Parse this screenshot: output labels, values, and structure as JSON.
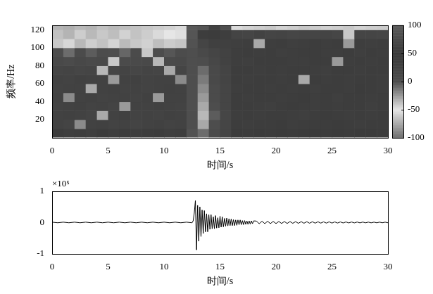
{
  "chart_data": [
    {
      "type": "heatmap",
      "x_label": "时间/s",
      "y_label": "频率/Hz",
      "xlim": [
        0,
        30
      ],
      "xticks": [
        0,
        5,
        10,
        15,
        20,
        25,
        30
      ],
      "ylim": [
        0,
        125
      ],
      "yticks": [
        20,
        40,
        60,
        80,
        100,
        120
      ],
      "grid": false,
      "x_bins": [
        0,
        1,
        2,
        3,
        4,
        5,
        6,
        7,
        8,
        9,
        10,
        11,
        12,
        13,
        14,
        15,
        16,
        17,
        18,
        19,
        20,
        21,
        22,
        23,
        24,
        25,
        26,
        27,
        28,
        29,
        30
      ],
      "y_bins": [
        0,
        10,
        20,
        30,
        40,
        50,
        60,
        70,
        80,
        90,
        100,
        110,
        120,
        125
      ],
      "cells": [
        [
          45,
          40,
          42,
          38,
          44,
          40,
          43,
          39,
          41,
          45,
          40,
          42,
          85,
          -10,
          5,
          25,
          48,
          46,
          47,
          45,
          48,
          46,
          47,
          48,
          45,
          47,
          46,
          48,
          47,
          46
        ],
        [
          30,
          25,
          -20,
          28,
          32,
          26,
          30,
          24,
          29,
          31,
          27,
          30,
          80,
          -30,
          0,
          20,
          42,
          40,
          43,
          41,
          44,
          40,
          42,
          43,
          41,
          44,
          42,
          40,
          43,
          41
        ],
        [
          28,
          32,
          30,
          25,
          -30,
          29,
          33,
          27,
          30,
          26,
          31,
          28,
          80,
          -35,
          -5,
          18,
          40,
          42,
          39,
          41,
          43,
          40,
          38,
          42,
          44,
          41,
          39,
          42,
          40,
          43
        ],
        [
          26,
          29,
          31,
          27,
          30,
          25,
          -25,
          30,
          28,
          32,
          29,
          27,
          80,
          -30,
          0,
          20,
          41,
          43,
          40,
          38,
          42,
          44,
          41,
          39,
          43,
          40,
          42,
          41,
          38,
          42
        ],
        [
          30,
          -20,
          28,
          31,
          27,
          30,
          29,
          26,
          32,
          -25,
          28,
          30,
          80,
          -25,
          5,
          22,
          42,
          40,
          41,
          43,
          39,
          42,
          44,
          40,
          41,
          38,
          43,
          42,
          40,
          41
        ],
        [
          27,
          30,
          29,
          -30,
          28,
          31,
          26,
          30,
          27,
          29,
          32,
          28,
          80,
          -20,
          5,
          22,
          40,
          42,
          43,
          39,
          41,
          40,
          42,
          38,
          43,
          41,
          40,
          44,
          42,
          39
        ],
        [
          29,
          27,
          32,
          28,
          30,
          -25,
          29,
          31,
          26,
          30,
          28,
          -20,
          80,
          -15,
          10,
          25,
          42,
          39,
          41,
          42,
          40,
          43,
          -30,
          41,
          40,
          42,
          39,
          41,
          43,
          40
        ],
        [
          20,
          25,
          18,
          22,
          -35,
          20,
          24,
          19,
          23,
          21,
          -30,
          22,
          80,
          -10,
          10,
          25,
          41,
          43,
          40,
          42,
          39,
          41,
          42,
          40,
          38,
          42,
          43,
          40,
          41,
          42
        ],
        [
          10,
          5,
          12,
          8,
          10,
          -40,
          6,
          9,
          11,
          -35,
          8,
          10,
          80,
          0,
          15,
          28,
          40,
          38,
          42,
          41,
          43,
          39,
          40,
          42,
          41,
          -25,
          40,
          42,
          39,
          41
        ],
        [
          0,
          -10,
          5,
          -5,
          2,
          0,
          -8,
          4,
          -40,
          1,
          -3,
          2,
          80,
          10,
          20,
          30,
          39,
          41,
          40,
          42,
          38,
          40,
          43,
          41,
          39,
          40,
          42,
          38,
          41,
          40
        ],
        [
          -40,
          -45,
          -35,
          -42,
          -38,
          -44,
          -36,
          -40,
          -43,
          -37,
          -41,
          -39,
          85,
          20,
          35,
          35,
          38,
          40,
          -30,
          39,
          41,
          38,
          40,
          42,
          39,
          41,
          -25,
          40,
          38,
          39
        ],
        [
          -65,
          -70,
          -60,
          -68,
          -62,
          -66,
          -58,
          -64,
          -60,
          -55,
          -50,
          -48,
          90,
          55,
          45,
          40,
          25,
          22,
          28,
          20,
          24,
          18,
          22,
          20,
          25,
          19,
          -40,
          21,
          20,
          18
        ],
        [
          -70,
          -72,
          -68,
          -70,
          -65,
          -68,
          -66,
          -64,
          -62,
          -60,
          -58,
          -55,
          95,
          90,
          60,
          80,
          -55,
          -58,
          -60,
          -62,
          -58,
          -60,
          -63,
          -61,
          -59,
          -60,
          -62,
          -58,
          -60,
          -61
        ]
      ],
      "colorbar": {
        "range": [
          -100,
          100
        ],
        "ticks": [
          -100,
          -50,
          0,
          50,
          100
        ]
      }
    },
    {
      "type": "line",
      "x_label": "时间/s",
      "annotations": [
        "×10⁵"
      ],
      "xlim": [
        0,
        30
      ],
      "xticks": [
        0,
        5,
        10,
        15,
        20,
        25,
        30
      ],
      "ylim": [
        -1,
        1
      ],
      "yticks": [
        -1,
        0,
        1
      ],
      "grid": false,
      "color": "#000000",
      "x": [
        0,
        0.5,
        1,
        1.5,
        2,
        2.5,
        3,
        3.5,
        4,
        4.5,
        5,
        5.5,
        6,
        6.5,
        7,
        7.5,
        8,
        8.5,
        9,
        9.5,
        10,
        10.5,
        11,
        11.5,
        12,
        12.5,
        12.6,
        12.7,
        12.8,
        12.9,
        13,
        13.1,
        13.2,
        13.3,
        13.4,
        13.5,
        13.6,
        13.7,
        13.8,
        13.9,
        14,
        14.1,
        14.2,
        14.3,
        14.4,
        14.5,
        14.6,
        14.7,
        14.8,
        14.9,
        15,
        15.1,
        15.2,
        15.3,
        15.4,
        15.5,
        15.6,
        15.7,
        15.8,
        15.9,
        16,
        16.1,
        16.2,
        16.3,
        16.4,
        16.5,
        16.6,
        16.7,
        16.8,
        16.9,
        17,
        17.1,
        17.2,
        17.3,
        17.4,
        17.5,
        17.6,
        17.7,
        17.8,
        17.9,
        18,
        18.25,
        18.5,
        18.75,
        19,
        19.25,
        19.5,
        19.75,
        20,
        20.25,
        20.5,
        20.75,
        21,
        21.25,
        21.5,
        21.75,
        22,
        22.25,
        22.5,
        22.75,
        23,
        23.25,
        23.5,
        23.75,
        24,
        24.25,
        24.5,
        24.75,
        25,
        25.25,
        25.5,
        25.75,
        26,
        26.25,
        26.5,
        26.75,
        27,
        27.25,
        27.5,
        27.75,
        28,
        28.25,
        28.5,
        28.75,
        29,
        29.25,
        29.5,
        29.75,
        30
      ],
      "values": [
        0.01,
        -0.01,
        0.01,
        -0.01,
        0.01,
        -0.01,
        0.01,
        -0.01,
        0.01,
        -0.01,
        0.01,
        -0.01,
        0.01,
        -0.01,
        0.01,
        -0.01,
        0.01,
        -0.01,
        0.01,
        -0.01,
        0.01,
        -0.01,
        0.01,
        -0.01,
        0.01,
        -0.01,
        0.05,
        0.3,
        0.7,
        -0.88,
        0.55,
        -0.6,
        0.5,
        -0.45,
        0.4,
        -0.35,
        0.38,
        -0.3,
        0.28,
        -0.3,
        0.25,
        -0.22,
        0.25,
        -0.2,
        0.18,
        -0.2,
        0.22,
        -0.18,
        0.15,
        -0.17,
        0.2,
        -0.15,
        0.18,
        -0.14,
        0.13,
        -0.12,
        0.14,
        -0.11,
        0.12,
        -0.1,
        0.11,
        -0.1,
        0.09,
        -0.1,
        0.08,
        -0.09,
        0.08,
        -0.07,
        0.08,
        -0.07,
        0.06,
        -0.07,
        0.06,
        -0.06,
        0.05,
        -0.06,
        0.05,
        -0.05,
        0.05,
        -0.04,
        0.05,
        0.045,
        -0.04,
        0.042,
        -0.038,
        0.04,
        -0.036,
        0.035,
        -0.034,
        0.033,
        -0.032,
        0.03,
        -0.031,
        0.03,
        -0.028,
        0.027,
        -0.028,
        0.026,
        -0.025,
        0.025,
        -0.024,
        0.023,
        -0.022,
        0.022,
        -0.021,
        0.02,
        -0.02,
        0.02,
        -0.019,
        0.018,
        -0.018,
        0.017,
        -0.016,
        0.016,
        -0.015,
        0.015,
        -0.014,
        0.014,
        -0.013,
        0.013,
        -0.012,
        0.012,
        -0.012,
        0.011,
        -0.011,
        0.011,
        -0.01,
        0.01,
        -0.01
      ]
    }
  ]
}
